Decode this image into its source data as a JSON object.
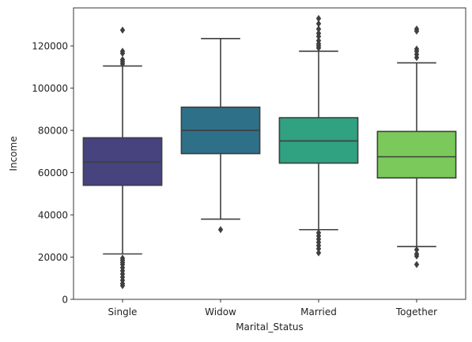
{
  "chart_data": {
    "type": "box",
    "xlabel": "Marital_Status",
    "ylabel": "Income",
    "ylim": [
      0,
      138000
    ],
    "yticks": [
      0,
      20000,
      40000,
      60000,
      80000,
      100000,
      120000
    ],
    "ytick_labels": [
      "0",
      "20000",
      "40000",
      "60000",
      "80000",
      "100000",
      "120000"
    ],
    "grid": false,
    "categories": [
      "Single",
      "Widow",
      "Married",
      "Together"
    ],
    "boxes": [
      {
        "category": "Single",
        "whisker_low": 21500,
        "q1": 54000,
        "median": 65000,
        "q3": 76500,
        "whisker_high": 110500,
        "outliers": [
          127500,
          117500,
          116500,
          113500,
          112500,
          111500,
          19500,
          18500,
          17500,
          16500,
          15000,
          13500,
          12000,
          10500,
          9000,
          7500,
          6500
        ],
        "color": "#46437f"
      },
      {
        "category": "Widow",
        "whisker_low": 38000,
        "q1": 69000,
        "median": 80000,
        "q3": 91000,
        "whisker_high": 123500,
        "outliers": [
          33000
        ],
        "color": "#2e7088"
      },
      {
        "category": "Married",
        "whisker_low": 33000,
        "q1": 64500,
        "median": 75000,
        "q3": 86000,
        "whisker_high": 117500,
        "outliers": [
          133000,
          130500,
          128000,
          126000,
          124500,
          122500,
          121000,
          120000,
          119000,
          31500,
          30000,
          28500,
          27000,
          25500,
          24000,
          22000
        ],
        "color": "#30a181"
      },
      {
        "category": "Together",
        "whisker_low": 25000,
        "q1": 57500,
        "median": 67500,
        "q3": 79500,
        "whisker_high": 112000,
        "outliers": [
          128000,
          127000,
          118500,
          117500,
          116000,
          114500,
          23500,
          21500,
          20500,
          16500
        ],
        "color": "#7ac95a"
      }
    ]
  }
}
